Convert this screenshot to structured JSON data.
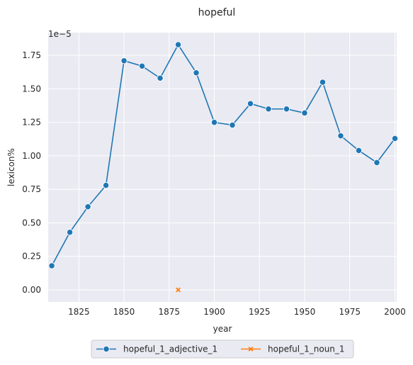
{
  "chart_data": {
    "type": "line",
    "title": "hopeful",
    "xlabel": "year",
    "ylabel": "lexicon%",
    "y_multiplier_label": "1e−5",
    "xlim": [
      1808,
      2001
    ],
    "ylim": [
      -0.09,
      1.92
    ],
    "x_ticks": [
      1825,
      1850,
      1875,
      1900,
      1925,
      1950,
      1975,
      2000
    ],
    "y_ticks": [
      0.0,
      0.25,
      0.5,
      0.75,
      1.0,
      1.25,
      1.5,
      1.75
    ],
    "y_tick_labels": [
      "0.00",
      "0.25",
      "0.50",
      "0.75",
      "1.00",
      "1.25",
      "1.50",
      "1.75"
    ],
    "grid": true,
    "legend_position": "bottom-center",
    "series": [
      {
        "name": "hopeful_1_adjective_1",
        "color": "#1f77b4",
        "marker": "circle",
        "points": [
          [
            1810,
            0.18
          ],
          [
            1820,
            0.43
          ],
          [
            1830,
            0.62
          ],
          [
            1840,
            0.78
          ],
          [
            1850,
            1.71
          ],
          [
            1860,
            1.67
          ],
          [
            1870,
            1.58
          ],
          [
            1880,
            1.83
          ],
          [
            1890,
            1.62
          ],
          [
            1900,
            1.25
          ],
          [
            1910,
            1.23
          ],
          [
            1920,
            1.39
          ],
          [
            1930,
            1.35
          ],
          [
            1940,
            1.35
          ],
          [
            1950,
            1.32
          ],
          [
            1960,
            1.55
          ],
          [
            1970,
            1.15
          ],
          [
            1980,
            1.04
          ],
          [
            1990,
            0.95
          ],
          [
            2000,
            1.13
          ]
        ]
      },
      {
        "name": "hopeful_1_noun_1",
        "color": "#ff7f0e",
        "marker": "x",
        "points": [
          [
            1880,
            0.0
          ]
        ]
      }
    ]
  }
}
